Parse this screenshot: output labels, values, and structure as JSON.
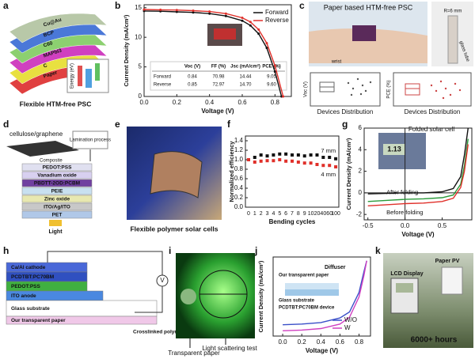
{
  "a": {
    "letter": "a",
    "layers": [
      "Cu@Au",
      "BCP",
      "C60",
      "MAPbI3",
      "C",
      "Paper"
    ],
    "inset_label": "Energy (eV)",
    "caption": "Flexible HTM-free PSC"
  },
  "b": {
    "letter": "b",
    "chart": {
      "type": "line",
      "xlabel": "Voltage (V)",
      "ylabel": "Current Density (mA/cm²)",
      "xlim": [
        0,
        0.9
      ],
      "ylim": [
        0,
        15.5
      ],
      "xticks": [
        {
          "value": 0,
          "label": "0.0"
        },
        0.2,
        0.4,
        0.6,
        0.8
      ],
      "yticks": [
        0,
        5,
        10,
        15
      ],
      "legend": "upper right",
      "series": [
        {
          "name": "Forward",
          "color": "#111111",
          "x": [
            0,
            0.1,
            0.2,
            0.3,
            0.4,
            0.5,
            0.6,
            0.65,
            0.7,
            0.75,
            0.8,
            0.84
          ],
          "values": [
            14.44,
            14.4,
            14.3,
            14.2,
            14.0,
            13.6,
            12.8,
            12.0,
            10.6,
            8.2,
            4.2,
            0
          ]
        },
        {
          "name": "Reverse",
          "color": "#e0302a",
          "x": [
            0,
            0.1,
            0.2,
            0.3,
            0.4,
            0.5,
            0.6,
            0.65,
            0.7,
            0.75,
            0.8,
            0.85
          ],
          "values": [
            14.7,
            14.65,
            14.6,
            14.5,
            14.35,
            14.0,
            13.3,
            12.6,
            11.3,
            9.0,
            5.2,
            0
          ]
        }
      ]
    },
    "table": {
      "header": [
        "Voc (V)",
        "FF (%)",
        "Jsc (mA/cm²)",
        "PCE (%)"
      ],
      "rows": [
        [
          "Forward",
          "0.84",
          "70.98",
          "14.44",
          "9.05"
        ],
        [
          "Reverse",
          "0.85",
          "72.97",
          "14.70",
          "9.60"
        ]
      ]
    }
  },
  "c": {
    "letter": "c",
    "title": "Paper based HTM-free PSC",
    "wrist": "wrist",
    "radius": "R=6 mm",
    "tube": "glass tube",
    "ylabel_left": "Voc (V)",
    "ylabel_right": "PCE (%)",
    "xlabel_left": "Devices Distribution",
    "xlabel_right": "Devices Distribution"
  },
  "d": {
    "letter": "d",
    "material": "cellulose/graphene",
    "composite": "Composite",
    "process": "Lamination process",
    "layers": [
      "PEDOT:PSS",
      "Vanadium oxide",
      "PBDTT-2OD:PCBM",
      "PEIE",
      "Zinc oxide",
      "ITO/Ag/ITO",
      "PET"
    ],
    "light": "Light"
  },
  "e": {
    "letter": "e",
    "caption": "Flexible polymer solar cells"
  },
  "f": {
    "letter": "f",
    "chart": {
      "type": "scatter",
      "xlabel": "Bending cycles",
      "ylabel": "Normalized efficiency",
      "categories": [
        "0",
        "1",
        "2",
        "3",
        "4",
        "5",
        "6",
        "7",
        "8",
        "9",
        "10",
        "20",
        "40",
        "60",
        "100"
      ],
      "ylim": [
        0,
        1.5
      ],
      "yticks": [
        {
          "value": 0,
          "label": "0.0"
        },
        0.2,
        0.4,
        0.6,
        0.8,
        {
          "value": 1,
          "label": "1.0"
        },
        1.2,
        1.4
      ],
      "legend": "inline",
      "series": [
        {
          "name": "7 mm",
          "color": "#111111",
          "values": [
            1.0,
            1.05,
            1.1,
            1.08,
            1.1,
            1.12,
            1.12,
            1.1,
            1.1,
            1.08,
            1.1,
            1.1,
            1.05,
            1.05,
            1.02
          ]
        },
        {
          "name": "4 mm",
          "color": "#e0302a",
          "values": [
            1.0,
            0.95,
            0.97,
            0.98,
            0.98,
            1.0,
            0.97,
            0.97,
            0.95,
            0.93,
            0.93,
            0.9,
            0.88,
            0.88,
            0.85
          ]
        }
      ]
    }
  },
  "g": {
    "letter": "g",
    "annotation": "Folded solar cell",
    "display": "1.13",
    "chart": {
      "type": "line",
      "xlabel": "Voltage (V)",
      "ylabel": "Current Density (mA/cm²)",
      "xlim": [
        -0.55,
        0.9
      ],
      "ylim": [
        -2.5,
        6
      ],
      "xticks": [
        -0.5,
        {
          "value": 0,
          "label": "0.0"
        },
        0.5
      ],
      "yticks": [
        -2,
        0,
        2,
        4,
        6
      ],
      "legend": "inline",
      "series": [
        {
          "name": "After folding",
          "color": "#2a9a3a",
          "x": [
            -0.5,
            -0.25,
            0,
            0.25,
            0.5,
            0.65,
            0.75,
            0.8,
            0.85
          ],
          "values": [
            -0.8,
            -0.7,
            -0.6,
            -0.55,
            -0.45,
            -0.2,
            0.8,
            2.5,
            5
          ]
        },
        {
          "name": "Before folding",
          "color": "#e0302a",
          "x": [
            -0.5,
            -0.25,
            0,
            0.25,
            0.5,
            0.65,
            0.75,
            0.8,
            0.85
          ],
          "values": [
            -1.2,
            -1.1,
            -1.0,
            -0.95,
            -0.8,
            -0.5,
            0.5,
            2,
            4.5
          ]
        },
        {
          "color": "#111111",
          "x": [
            -0.5,
            -0.25,
            0,
            0.25,
            0.5,
            0.65,
            0.75,
            0.8,
            0.85
          ],
          "values": [
            -0.1,
            -0.05,
            0,
            0,
            0.1,
            0.4,
            1.5,
            3.5,
            6
          ]
        }
      ]
    }
  },
  "h": {
    "letter": "h",
    "layers": [
      "Ca/Al cathode",
      "PCDTBT:PC70BM",
      "PEDOT:PSS",
      "ITO anode",
      "Glass substrate",
      "Our transparent paper"
    ],
    "polymer": "Crosslinked polymer",
    "meter": "V"
  },
  "i": {
    "letter": "i",
    "paper": "Transparent paper",
    "test": "Light scattering test"
  },
  "j": {
    "letter": "j",
    "diffuser": "Diffuser",
    "paper": "Our transparent paper",
    "glass": "Glass substrate",
    "device": "PCDTBT:PC70BM device",
    "chart": {
      "type": "line",
      "xlabel": "Voltage (V)",
      "ylabel": "Current Density (mA/cm²)",
      "xlim": [
        -0.1,
        0.92
      ],
      "ylim": [
        -10,
        0.5
      ],
      "xticks": [
        {
          "value": 0,
          "label": "0.0"
        },
        0.2,
        0.4,
        0.6,
        0.8
      ],
      "legend": "lower right",
      "series": [
        {
          "name": "W/O",
          "color": "#3a4fc8",
          "x": [
            0,
            0.2,
            0.4,
            0.6,
            0.7,
            0.8,
            0.85,
            0.88
          ],
          "values": [
            -8.5,
            -8.4,
            -8.2,
            -7.6,
            -6.8,
            -4.2,
            -1.5,
            0
          ]
        },
        {
          "name": "W",
          "color": "#d040c0",
          "x": [
            0,
            0.2,
            0.4,
            0.6,
            0.7,
            0.8,
            0.85,
            0.88
          ],
          "values": [
            -9.3,
            -9.2,
            -9,
            -8.4,
            -7.5,
            -4.8,
            -2,
            0
          ]
        }
      ]
    }
  },
  "k": {
    "letter": "k",
    "lcd": "LCD Display",
    "pv": "Paper PV",
    "hours": "6000+ hours"
  }
}
